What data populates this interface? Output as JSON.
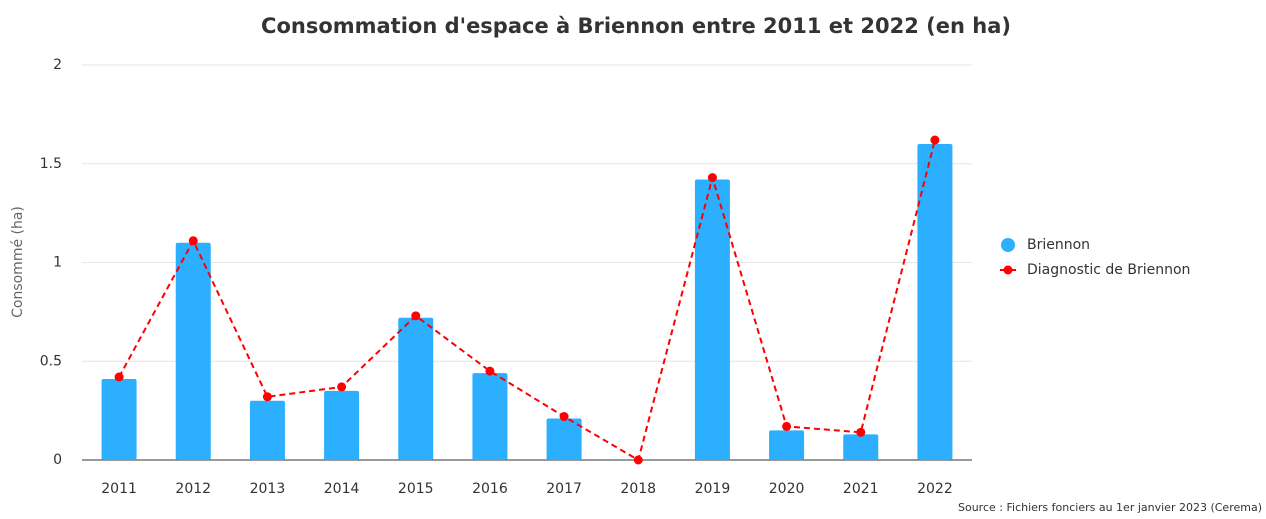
{
  "chart_data": {
    "type": "bar",
    "title": "Consommation d'espace à Briennon entre 2011 et 2022 (en ha)",
    "y_label": "Consommé (ha)",
    "source": "Source : Fichiers fonciers au 1er janvier 2023 (Cerema)",
    "categories": [
      "2011",
      "2012",
      "2013",
      "2014",
      "2015",
      "2016",
      "2017",
      "2018",
      "2019",
      "2020",
      "2021",
      "2022"
    ],
    "series": [
      {
        "name": "Briennon",
        "type": "bar",
        "color": "#2caffe",
        "values": [
          0.41,
          1.1,
          0.3,
          0.35,
          0.72,
          0.44,
          0.21,
          0,
          1.42,
          0.15,
          0.13,
          1.6
        ]
      },
      {
        "name": "Diagnostic de Briennon",
        "type": "line",
        "line_style": "dashed",
        "color": "#ff0000",
        "values": [
          0.42,
          1.11,
          0.32,
          0.37,
          0.73,
          0.45,
          0.22,
          0,
          1.43,
          0.17,
          0.14,
          1.62
        ]
      }
    ],
    "ylim": [
      0,
      2
    ],
    "yticks": [
      0,
      0.5,
      1,
      1.5,
      2
    ],
    "grid": true,
    "legend": "right"
  }
}
